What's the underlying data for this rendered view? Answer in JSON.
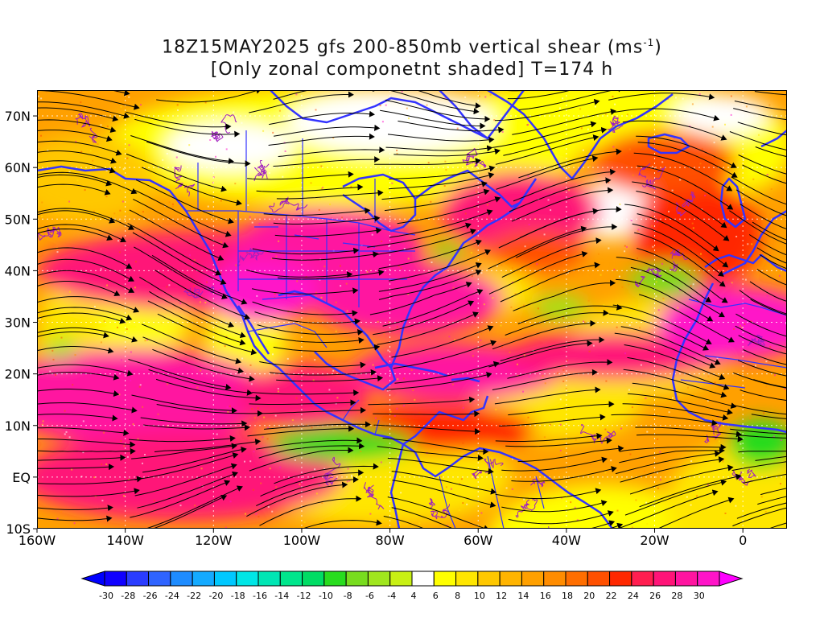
{
  "title": {
    "line1_prefix": "18Z15MAY2025 gfs 200-850mb vertical shear (ms",
    "line1_sup": "-1",
    "line1_suffix": ")",
    "line2": "[Only zonal componetnt shaded] T=174 h"
  },
  "map": {
    "lon_range": [
      -160,
      10
    ],
    "lat_range": [
      -10,
      75
    ],
    "lon_tick_labels": [
      {
        "lon": -160,
        "label": "160W"
      },
      {
        "lon": -140,
        "label": "140W"
      },
      {
        "lon": -120,
        "label": "120W"
      },
      {
        "lon": -100,
        "label": "100W"
      },
      {
        "lon": -80,
        "label": "80W"
      },
      {
        "lon": -60,
        "label": "60W"
      },
      {
        "lon": -40,
        "label": "40W"
      },
      {
        "lon": -20,
        "label": "20W"
      },
      {
        "lon": 0,
        "label": "0"
      }
    ],
    "lat_tick_labels": [
      {
        "lat": 70,
        "label": "70N"
      },
      {
        "lat": 60,
        "label": "60N"
      },
      {
        "lat": 50,
        "label": "50N"
      },
      {
        "lat": 40,
        "label": "40N"
      },
      {
        "lat": 30,
        "label": "30N"
      },
      {
        "lat": 20,
        "label": "20N"
      },
      {
        "lat": 10,
        "label": "10N"
      },
      {
        "lat": 0,
        "label": "EQ"
      },
      {
        "lat": -10,
        "label": "10S"
      }
    ],
    "coastline_color": "#3333ff",
    "streamline_color": "#000000",
    "contour_color": "#a020c0"
  },
  "colorbar": {
    "labels": [
      "-30",
      "-28",
      "-26",
      "-24",
      "-22",
      "-20",
      "-18",
      "-16",
      "-14",
      "-12",
      "-10",
      "-8",
      "-6",
      "-4",
      "4",
      "6",
      "8",
      "10",
      "12",
      "14",
      "16",
      "18",
      "20",
      "22",
      "24",
      "26",
      "28",
      "30"
    ],
    "colors": [
      "#1000ff",
      "#2a3cff",
      "#2f64ff",
      "#1e8cff",
      "#14aaff",
      "#00c8ff",
      "#00e6e6",
      "#00e6b4",
      "#00e68c",
      "#00dc64",
      "#28dc1e",
      "#78dc1e",
      "#a0e61e",
      "#c8f014",
      "#ffffff",
      "#ffff00",
      "#ffe600",
      "#ffc800",
      "#ffb400",
      "#ffa000",
      "#ff8c00",
      "#ff6e00",
      "#ff5000",
      "#ff2800",
      "#ff1e50",
      "#ff1478",
      "#ff14a0",
      "#ff14c8"
    ],
    "low_arrow_color": "#0000ff",
    "high_arrow_color": "#ff00ff"
  }
}
